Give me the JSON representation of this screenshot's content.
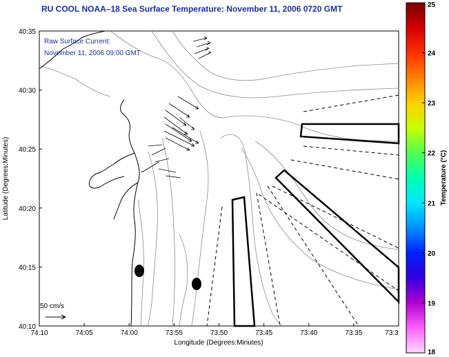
{
  "title": "RU COOL  NOAA–18  Sea Surface Temperature:  November 11, 2006 0720 GMT",
  "legend": {
    "line1": "Raw Surface Current:",
    "line2": "November 11, 2006 09:00 GMT"
  },
  "scale_label": "50 cm/s",
  "x_axis": {
    "label": "Longitude (Degrees:Minutes)",
    "ticks": [
      "74:10",
      "74:05",
      "74:00",
      "73:55",
      "73:50",
      "73:45",
      "73:40",
      "73:35",
      "73:3"
    ]
  },
  "y_axis": {
    "label": "Latitude (Degrees:Minutes)",
    "ticks": [
      "40:35",
      "40:30",
      "40:25",
      "40:20",
      "40:15",
      "40:10"
    ]
  },
  "colorbar": {
    "label": "Temperature (°C)",
    "ticks": [
      "25",
      "24",
      "23",
      "22",
      "21",
      "20",
      "19",
      "18"
    ],
    "colors": [
      "#7a0000",
      "#d40000",
      "#ff3000",
      "#ff8000",
      "#ffd000",
      "#c8ff00",
      "#50ff50",
      "#00ffb0",
      "#00e8ff",
      "#0090ff",
      "#0020ff",
      "#3000e0",
      "#b000d0",
      "#ff60ff",
      "#ffd8ff"
    ]
  }
}
